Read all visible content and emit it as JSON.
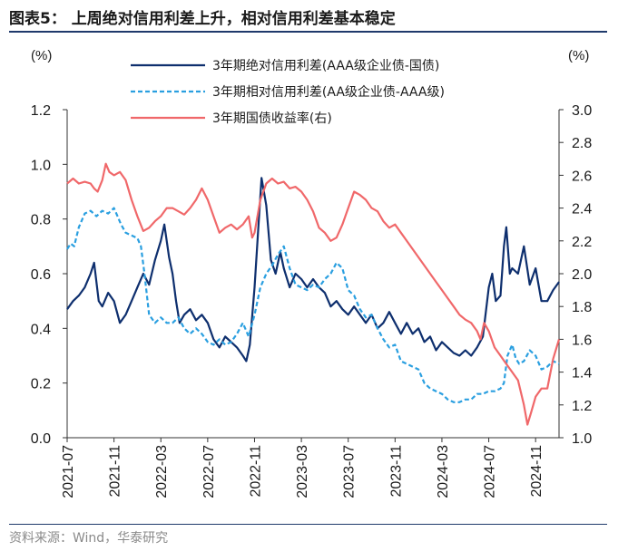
{
  "header": {
    "title": "图表5：  上周绝对信用利差上升，相对信用利差基本稳定"
  },
  "footer": {
    "source": "资料来源：Wind，华泰研究"
  },
  "chart_data": {
    "type": "line",
    "left_axis": {
      "unit": "(%)",
      "ylim": [
        0.0,
        1.2
      ],
      "ticks": [
        "0.0",
        "0.2",
        "0.4",
        "0.6",
        "0.8",
        "1.0",
        "1.2"
      ]
    },
    "right_axis": {
      "unit": "(%)",
      "ylim": [
        1.0,
        3.0
      ],
      "ticks": [
        "1.0",
        "1.2",
        "1.4",
        "1.6",
        "1.8",
        "2.0",
        "2.2",
        "2.4",
        "2.6",
        "2.8",
        "3.0"
      ]
    },
    "x_axis": {
      "ticks": [
        "2021-07",
        "2021-11",
        "2022-03",
        "2022-07",
        "2022-11",
        "2023-03",
        "2023-07",
        "2023-11",
        "2024-03",
        "2024-07",
        "2024-11"
      ],
      "start_month": 0,
      "end_month": 42
    },
    "series": [
      {
        "name": "3年期绝对信用利差(AAA级企业债-国债)",
        "axis": "left",
        "color": "#0e2f6e",
        "style": "solid",
        "points": [
          [
            0,
            0.47
          ],
          [
            0.5,
            0.5
          ],
          [
            1,
            0.52
          ],
          [
            1.5,
            0.55
          ],
          [
            2,
            0.6
          ],
          [
            2.3,
            0.64
          ],
          [
            2.7,
            0.5
          ],
          [
            3,
            0.48
          ],
          [
            3.5,
            0.53
          ],
          [
            4,
            0.5
          ],
          [
            4.5,
            0.42
          ],
          [
            5,
            0.45
          ],
          [
            5.5,
            0.5
          ],
          [
            6,
            0.55
          ],
          [
            6.5,
            0.6
          ],
          [
            7,
            0.56
          ],
          [
            7.5,
            0.65
          ],
          [
            8,
            0.72
          ],
          [
            8.3,
            0.78
          ],
          [
            8.7,
            0.66
          ],
          [
            9,
            0.6
          ],
          [
            9.3,
            0.5
          ],
          [
            9.6,
            0.42
          ],
          [
            10,
            0.45
          ],
          [
            10.5,
            0.47
          ],
          [
            11,
            0.43
          ],
          [
            11.5,
            0.45
          ],
          [
            12,
            0.42
          ],
          [
            12.5,
            0.36
          ],
          [
            13,
            0.33
          ],
          [
            13.5,
            0.37
          ],
          [
            14,
            0.35
          ],
          [
            14.5,
            0.33
          ],
          [
            15,
            0.3
          ],
          [
            15.3,
            0.28
          ],
          [
            15.6,
            0.34
          ],
          [
            16,
            0.55
          ],
          [
            16.3,
            0.75
          ],
          [
            16.6,
            0.95
          ],
          [
            17,
            0.85
          ],
          [
            17.4,
            0.65
          ],
          [
            17.8,
            0.6
          ],
          [
            18.2,
            0.68
          ],
          [
            18.5,
            0.62
          ],
          [
            19,
            0.55
          ],
          [
            19.5,
            0.6
          ],
          [
            20,
            0.58
          ],
          [
            20.5,
            0.55
          ],
          [
            21,
            0.58
          ],
          [
            21.5,
            0.55
          ],
          [
            22,
            0.53
          ],
          [
            22.5,
            0.48
          ],
          [
            23,
            0.5
          ],
          [
            23.5,
            0.47
          ],
          [
            24,
            0.45
          ],
          [
            24.5,
            0.48
          ],
          [
            25,
            0.45
          ],
          [
            25.5,
            0.42
          ],
          [
            26,
            0.45
          ],
          [
            26.5,
            0.4
          ],
          [
            27,
            0.42
          ],
          [
            27.5,
            0.46
          ],
          [
            28,
            0.42
          ],
          [
            28.5,
            0.38
          ],
          [
            29,
            0.42
          ],
          [
            29.5,
            0.38
          ],
          [
            30,
            0.4
          ],
          [
            30.5,
            0.35
          ],
          [
            31,
            0.37
          ],
          [
            31.5,
            0.32
          ],
          [
            32,
            0.35
          ],
          [
            32.5,
            0.33
          ],
          [
            33,
            0.31
          ],
          [
            33.5,
            0.3
          ],
          [
            34,
            0.32
          ],
          [
            34.5,
            0.3
          ],
          [
            35,
            0.33
          ],
          [
            35.5,
            0.37
          ],
          [
            36,
            0.55
          ],
          [
            36.3,
            0.6
          ],
          [
            36.6,
            0.5
          ],
          [
            37,
            0.52
          ],
          [
            37.3,
            0.7
          ],
          [
            37.5,
            0.77
          ],
          [
            37.8,
            0.6
          ],
          [
            38,
            0.62
          ],
          [
            38.5,
            0.6
          ],
          [
            39,
            0.7
          ],
          [
            39.5,
            0.56
          ],
          [
            40,
            0.62
          ],
          [
            40.5,
            0.5
          ],
          [
            41,
            0.5
          ],
          [
            41.5,
            0.54
          ],
          [
            42,
            0.57
          ]
        ]
      },
      {
        "name": "3年期相对信用利差(AA级企业债-AAA级)",
        "axis": "left",
        "color": "#2a9fe0",
        "style": "dashed",
        "points": [
          [
            0,
            0.69
          ],
          [
            0.3,
            0.71
          ],
          [
            0.6,
            0.7
          ],
          [
            1,
            0.77
          ],
          [
            1.5,
            0.82
          ],
          [
            2,
            0.83
          ],
          [
            2.5,
            0.81
          ],
          [
            3,
            0.83
          ],
          [
            3.5,
            0.82
          ],
          [
            4,
            0.84
          ],
          [
            4.3,
            0.81
          ],
          [
            4.6,
            0.78
          ],
          [
            5,
            0.75
          ],
          [
            5.5,
            0.74
          ],
          [
            6,
            0.73
          ],
          [
            6.3,
            0.7
          ],
          [
            6.6,
            0.6
          ],
          [
            7,
            0.45
          ],
          [
            7.5,
            0.42
          ],
          [
            8,
            0.44
          ],
          [
            8.5,
            0.42
          ],
          [
            9,
            0.42
          ],
          [
            9.5,
            0.44
          ],
          [
            10,
            0.4
          ],
          [
            10.5,
            0.38
          ],
          [
            11,
            0.4
          ],
          [
            11.5,
            0.38
          ],
          [
            12,
            0.35
          ],
          [
            12.5,
            0.34
          ],
          [
            13,
            0.36
          ],
          [
            13.5,
            0.34
          ],
          [
            14,
            0.35
          ],
          [
            14.5,
            0.38
          ],
          [
            15,
            0.42
          ],
          [
            15.5,
            0.37
          ],
          [
            16,
            0.45
          ],
          [
            16.5,
            0.55
          ],
          [
            17,
            0.6
          ],
          [
            17.5,
            0.63
          ],
          [
            18,
            0.67
          ],
          [
            18.5,
            0.7
          ],
          [
            19,
            0.62
          ],
          [
            19.5,
            0.56
          ],
          [
            20,
            0.55
          ],
          [
            20.5,
            0.54
          ],
          [
            21,
            0.56
          ],
          [
            21.5,
            0.55
          ],
          [
            22,
            0.58
          ],
          [
            22.5,
            0.6
          ],
          [
            23,
            0.64
          ],
          [
            23.5,
            0.62
          ],
          [
            24,
            0.54
          ],
          [
            24.5,
            0.52
          ],
          [
            25,
            0.47
          ],
          [
            25.5,
            0.44
          ],
          [
            26,
            0.45
          ],
          [
            26.5,
            0.4
          ],
          [
            27,
            0.36
          ],
          [
            27.5,
            0.33
          ],
          [
            28,
            0.34
          ],
          [
            28.5,
            0.28
          ],
          [
            29,
            0.27
          ],
          [
            29.5,
            0.26
          ],
          [
            30,
            0.25
          ],
          [
            30.5,
            0.2
          ],
          [
            31,
            0.18
          ],
          [
            31.5,
            0.17
          ],
          [
            32,
            0.16
          ],
          [
            32.5,
            0.14
          ],
          [
            33,
            0.13
          ],
          [
            33.5,
            0.13
          ],
          [
            34,
            0.14
          ],
          [
            34.5,
            0.14
          ],
          [
            35,
            0.16
          ],
          [
            35.5,
            0.16
          ],
          [
            36,
            0.17
          ],
          [
            36.5,
            0.17
          ],
          [
            37,
            0.18
          ],
          [
            37.3,
            0.2
          ],
          [
            37.6,
            0.3
          ],
          [
            38,
            0.34
          ],
          [
            38.3,
            0.29
          ],
          [
            38.6,
            0.27
          ],
          [
            39,
            0.28
          ],
          [
            39.5,
            0.32
          ],
          [
            40,
            0.3
          ],
          [
            40.5,
            0.25
          ],
          [
            41,
            0.26
          ],
          [
            41.5,
            0.28
          ],
          [
            42,
            0.27
          ]
        ]
      },
      {
        "name": "3年期国债收益率(右)",
        "axis": "right",
        "color": "#f0686a",
        "style": "solid",
        "points": [
          [
            0,
            2.55
          ],
          [
            0.5,
            2.58
          ],
          [
            1,
            2.55
          ],
          [
            1.5,
            2.56
          ],
          [
            2,
            2.55
          ],
          [
            2.3,
            2.52
          ],
          [
            2.6,
            2.5
          ],
          [
            3,
            2.57
          ],
          [
            3.3,
            2.67
          ],
          [
            3.6,
            2.62
          ],
          [
            4,
            2.6
          ],
          [
            4.5,
            2.62
          ],
          [
            5,
            2.57
          ],
          [
            5.5,
            2.45
          ],
          [
            6,
            2.35
          ],
          [
            6.5,
            2.26
          ],
          [
            7,
            2.28
          ],
          [
            7.5,
            2.32
          ],
          [
            8,
            2.35
          ],
          [
            8.5,
            2.4
          ],
          [
            9,
            2.4
          ],
          [
            9.5,
            2.38
          ],
          [
            10,
            2.36
          ],
          [
            10.5,
            2.4
          ],
          [
            11,
            2.45
          ],
          [
            11.5,
            2.52
          ],
          [
            12,
            2.45
          ],
          [
            12.5,
            2.35
          ],
          [
            13,
            2.25
          ],
          [
            13.5,
            2.28
          ],
          [
            14,
            2.3
          ],
          [
            14.5,
            2.27
          ],
          [
            15,
            2.3
          ],
          [
            15.5,
            2.35
          ],
          [
            15.8,
            2.22
          ],
          [
            16,
            2.25
          ],
          [
            16.5,
            2.45
          ],
          [
            17,
            2.55
          ],
          [
            17.5,
            2.58
          ],
          [
            18,
            2.55
          ],
          [
            18.5,
            2.56
          ],
          [
            19,
            2.52
          ],
          [
            19.5,
            2.53
          ],
          [
            20,
            2.5
          ],
          [
            20.5,
            2.45
          ],
          [
            21,
            2.38
          ],
          [
            21.5,
            2.28
          ],
          [
            22,
            2.25
          ],
          [
            22.5,
            2.2
          ],
          [
            23,
            2.22
          ],
          [
            23.5,
            2.3
          ],
          [
            24,
            2.4
          ],
          [
            24.5,
            2.5
          ],
          [
            25,
            2.48
          ],
          [
            25.5,
            2.45
          ],
          [
            26,
            2.4
          ],
          [
            26.5,
            2.38
          ],
          [
            27,
            2.32
          ],
          [
            27.5,
            2.28
          ],
          [
            28,
            2.3
          ],
          [
            28.5,
            2.25
          ],
          [
            29,
            2.2
          ],
          [
            29.5,
            2.15
          ],
          [
            30,
            2.1
          ],
          [
            30.5,
            2.05
          ],
          [
            31,
            2.0
          ],
          [
            31.5,
            1.95
          ],
          [
            32,
            1.9
          ],
          [
            32.5,
            1.85
          ],
          [
            33,
            1.8
          ],
          [
            33.5,
            1.75
          ],
          [
            34,
            1.72
          ],
          [
            34.5,
            1.7
          ],
          [
            35,
            1.65
          ],
          [
            35.3,
            1.6
          ],
          [
            35.6,
            1.7
          ],
          [
            36,
            1.65
          ],
          [
            36.5,
            1.55
          ],
          [
            37,
            1.5
          ],
          [
            37.5,
            1.45
          ],
          [
            38,
            1.4
          ],
          [
            38.5,
            1.35
          ],
          [
            39,
            1.2
          ],
          [
            39.3,
            1.08
          ],
          [
            39.6,
            1.15
          ],
          [
            40,
            1.25
          ],
          [
            40.5,
            1.3
          ],
          [
            41,
            1.3
          ],
          [
            41.5,
            1.48
          ],
          [
            42,
            1.6
          ]
        ]
      }
    ]
  }
}
